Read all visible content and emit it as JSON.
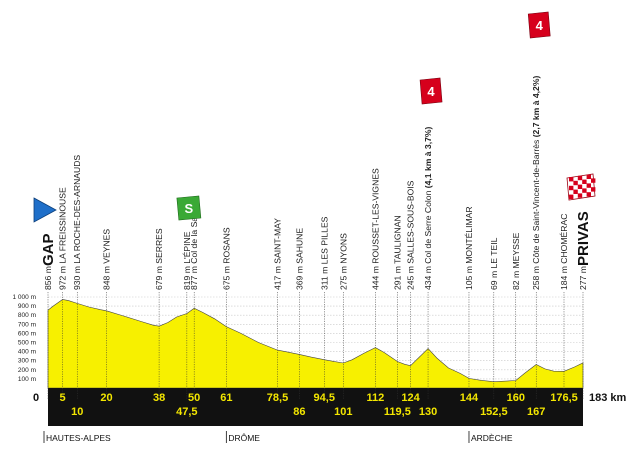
{
  "chart_data": {
    "type": "area",
    "title": "",
    "xlabel": "",
    "ylabel": "",
    "total_distance_label": "183 km",
    "start_km_label": "0",
    "xlim": [
      0,
      183
    ],
    "ylim": [
      0,
      1000
    ],
    "y_ticks": [
      "100 m",
      "200 m",
      "300 m",
      "400 m",
      "500 m",
      "600 m",
      "700 m",
      "800 m",
      "900 m",
      "1 000 m"
    ],
    "profile": [
      [
        0,
        856
      ],
      [
        2,
        905
      ],
      [
        5,
        972
      ],
      [
        7,
        960
      ],
      [
        10,
        930
      ],
      [
        14,
        890
      ],
      [
        18,
        860
      ],
      [
        20,
        848
      ],
      [
        26,
        790
      ],
      [
        32,
        730
      ],
      [
        36,
        690
      ],
      [
        38,
        679
      ],
      [
        41,
        720
      ],
      [
        44,
        780
      ],
      [
        47.5,
        819
      ],
      [
        50,
        877
      ],
      [
        53,
        830
      ],
      [
        57,
        760
      ],
      [
        61,
        675
      ],
      [
        66,
        600
      ],
      [
        72,
        500
      ],
      [
        78.5,
        417
      ],
      [
        82,
        395
      ],
      [
        86,
        369
      ],
      [
        90,
        340
      ],
      [
        94.5,
        311
      ],
      [
        98,
        290
      ],
      [
        101,
        275
      ],
      [
        104,
        310
      ],
      [
        108,
        380
      ],
      [
        112,
        444
      ],
      [
        115,
        390
      ],
      [
        119.5,
        291
      ],
      [
        122,
        260
      ],
      [
        124,
        245
      ],
      [
        127,
        340
      ],
      [
        130,
        434
      ],
      [
        133,
        330
      ],
      [
        137,
        220
      ],
      [
        141,
        160
      ],
      [
        144,
        105
      ],
      [
        148,
        85
      ],
      [
        152.5,
        69
      ],
      [
        156,
        75
      ],
      [
        160,
        82
      ],
      [
        163,
        160
      ],
      [
        167,
        258
      ],
      [
        170,
        210
      ],
      [
        173,
        185
      ],
      [
        176.5,
        184
      ],
      [
        180,
        230
      ],
      [
        183,
        277
      ]
    ],
    "km_markers_top": [
      "5",
      "20",
      "38",
      "50",
      "61",
      "78,5",
      "94,5",
      "112",
      "124",
      "144",
      "160",
      "176,5"
    ],
    "km_markers_bottom": [
      "10",
      "47,5",
      "86",
      "101",
      "119,5",
      "130",
      "152,5",
      "167"
    ],
    "km_top_values": [
      5,
      20,
      38,
      50,
      61,
      78.5,
      94.5,
      112,
      124,
      144,
      160,
      176.5
    ],
    "km_bottom_values": [
      10,
      47.5,
      86,
      101,
      119.5,
      130,
      152.5,
      167
    ],
    "waypoints": [
      {
        "km": 0,
        "label": "856 m",
        "town": "GAP",
        "big": true
      },
      {
        "km": 5,
        "label": "972 m LA FREISSINOUSE"
      },
      {
        "km": 10,
        "label": "930 m LA ROCHE-DES-ARNAUDS"
      },
      {
        "km": 20,
        "label": "848 m VEYNES"
      },
      {
        "km": 38,
        "label": "679 m SERRES"
      },
      {
        "km": 47.5,
        "label": "819 m L'ÉPINE"
      },
      {
        "km": 50,
        "label": "877 m Col de la Sauce"
      },
      {
        "km": 61,
        "label": "675 m ROSANS"
      },
      {
        "km": 78.5,
        "label": "417 m SAINT-MAY"
      },
      {
        "km": 86,
        "label": "369 m SAHUNE"
      },
      {
        "km": 94.5,
        "label": "311 m LES PILLES"
      },
      {
        "km": 101,
        "label": "275 m NYONS"
      },
      {
        "km": 112,
        "label": "444 m ROUSSET-LES-VIGNES"
      },
      {
        "km": 119.5,
        "label": "291 m TAULIGNAN"
      },
      {
        "km": 124,
        "label": "245 m SALLES-SOUS-BOIS"
      },
      {
        "km": 130,
        "label": "434 m Col de Serre Colon",
        "climb": " (4,1 km à 3,7%)"
      },
      {
        "km": 144,
        "label": "105 m MONTÉLIMAR"
      },
      {
        "km": 152.5,
        "label": "69 m LE TEIL"
      },
      {
        "km": 160,
        "label": "82 m MEYSSE"
      },
      {
        "km": 167,
        "label": "258 m Côte de Saint-Vincent-de-Barrès",
        "climb": " (2,7 km à 4,2%)"
      },
      {
        "km": 176.5,
        "label": "184 m CHOMÉRAC"
      },
      {
        "km": 183,
        "label": "277 m",
        "town": "PRIVAS",
        "big": true
      }
    ],
    "regions": [
      {
        "label": "HAUTES-ALPES",
        "km": 0
      },
      {
        "label": "DRÔME",
        "km": 61
      },
      {
        "label": "ARDÈCHE",
        "km": 144
      }
    ],
    "climb_flags": [
      {
        "km": 130,
        "category": "4",
        "color": "#d6001c"
      },
      {
        "km": 167,
        "category": "4",
        "color": "#d6001c"
      }
    ],
    "sprint_flag": {
      "km": 47.5,
      "letter": "S",
      "color": "#3aa935"
    },
    "start_flag_color": "#1f6fc9",
    "finish_flag": "checkered-red",
    "fill_color": "#f7f000",
    "band_color": "#111111",
    "marker_color": "#f3e600"
  }
}
